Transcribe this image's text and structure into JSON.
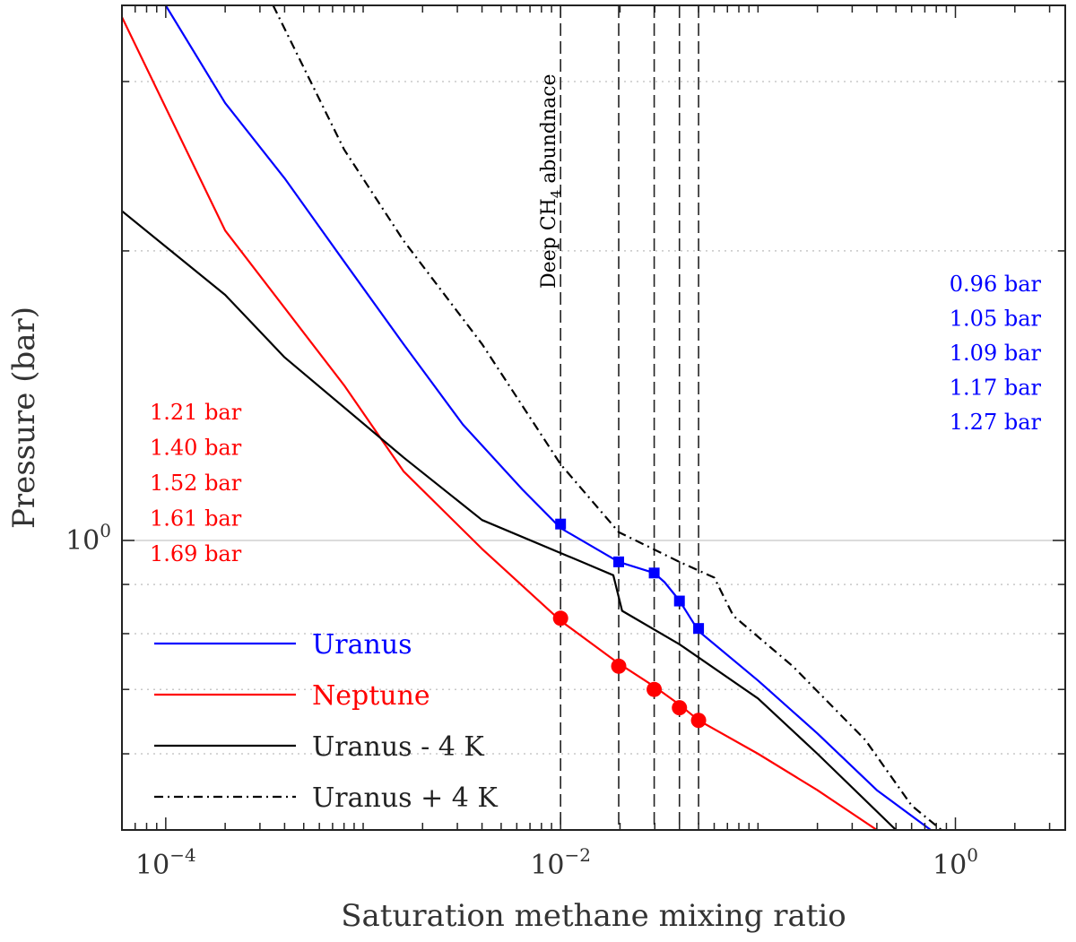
{
  "chart_data": {
    "type": "line",
    "xlabel": "Saturation methane mixing ratio",
    "ylabel": "Pressure (bar)",
    "xscale": "log",
    "yscale": "log",
    "xlim": [
      6e-05,
      3.6
    ],
    "ylim": [
      0.5,
      3.6
    ],
    "x_ticks": [
      {
        "value": 0.0001,
        "base": "10",
        "exp": "−4"
      },
      {
        "value": 0.01,
        "base": "10",
        "exp": "−2"
      },
      {
        "value": 1,
        "base": "10",
        "exp": "0"
      }
    ],
    "y_ticks": [
      {
        "value": 1,
        "base": "10",
        "exp": "0"
      }
    ],
    "vline_label": {
      "prefix": "Deep CH",
      "sub": "4",
      "suffix": " abundnace"
    },
    "deep_ch4_abundances": [
      0.01,
      0.0197,
      0.0298,
      0.04,
      0.05
    ],
    "series": [
      {
        "name": "Uranus",
        "color": "#0000ff",
        "style": "solid",
        "points": [
          [
            0.0001,
            3.6
          ],
          [
            0.0002,
            2.85
          ],
          [
            0.0004,
            2.38
          ],
          [
            0.0008,
            1.95
          ],
          [
            0.0016,
            1.6
          ],
          [
            0.0032,
            1.32
          ],
          [
            0.0064,
            1.13
          ],
          [
            0.01,
            1.03
          ],
          [
            0.0197,
            0.95
          ],
          [
            0.0298,
            0.925
          ],
          [
            0.0336,
            0.905
          ],
          [
            0.04,
            0.866
          ],
          [
            0.05,
            0.805
          ],
          [
            0.1,
            0.715
          ],
          [
            0.2,
            0.63
          ],
          [
            0.4,
            0.55
          ],
          [
            0.75,
            0.5
          ]
        ]
      },
      {
        "name": "Neptune",
        "color": "#ff0000",
        "style": "solid",
        "points": [
          [
            6e-05,
            3.5
          ],
          [
            0.0002,
            2.1
          ],
          [
            0.0008,
            1.45
          ],
          [
            0.0016,
            1.18
          ],
          [
            0.004,
            0.98
          ],
          [
            0.01,
            0.825
          ],
          [
            0.0197,
            0.745
          ],
          [
            0.0298,
            0.705
          ],
          [
            0.04,
            0.675
          ],
          [
            0.05,
            0.65
          ],
          [
            0.1,
            0.6
          ],
          [
            0.2,
            0.55
          ],
          [
            0.4,
            0.5
          ]
        ]
      },
      {
        "name": "Uranus - 4 K",
        "color": "#000000",
        "style": "solid",
        "points": [
          [
            6e-05,
            2.2
          ],
          [
            0.0002,
            1.8
          ],
          [
            0.0004,
            1.55
          ],
          [
            0.0016,
            1.22
          ],
          [
            0.004,
            1.05
          ],
          [
            0.0128,
            0.95
          ],
          [
            0.0185,
            0.92
          ],
          [
            0.0205,
            0.845
          ],
          [
            0.04,
            0.78
          ],
          [
            0.1,
            0.685
          ],
          [
            0.2,
            0.6
          ],
          [
            0.5,
            0.5
          ]
        ]
      },
      {
        "name": "Uranus + 4 K",
        "color": "#000000",
        "style": "dashdot",
        "points": [
          [
            0.00035,
            3.6
          ],
          [
            0.0008,
            2.55
          ],
          [
            0.0016,
            2.05
          ],
          [
            0.004,
            1.6
          ],
          [
            0.01,
            1.2
          ],
          [
            0.0197,
            1.02
          ],
          [
            0.04,
            0.95
          ],
          [
            0.06,
            0.915
          ],
          [
            0.075,
            0.835
          ],
          [
            0.15,
            0.74
          ],
          [
            0.35,
            0.62
          ],
          [
            0.6,
            0.53
          ],
          [
            0.85,
            0.5
          ]
        ]
      }
    ],
    "markers": {
      "Uranus": {
        "color": "#0000ff",
        "shape": "square",
        "points": [
          [
            0.01,
            1.04
          ],
          [
            0.0197,
            0.95
          ],
          [
            0.0298,
            0.925
          ],
          [
            0.04,
            0.865
          ],
          [
            0.05,
            0.81
          ]
        ]
      },
      "Neptune": {
        "color": "#ff0000",
        "shape": "circle",
        "points": [
          [
            0.01,
            0.83
          ],
          [
            0.0197,
            0.74
          ],
          [
            0.0298,
            0.7
          ],
          [
            0.04,
            0.67
          ],
          [
            0.05,
            0.65
          ]
        ]
      }
    },
    "annotations_uranus": [
      "0.96 bar",
      "1.05 bar",
      "1.09 bar",
      "1.17 bar",
      "1.27 bar"
    ],
    "annotations_neptune": [
      "1.21 bar",
      "1.40 bar",
      "1.52 bar",
      "1.61 bar",
      "1.69 bar"
    ],
    "legend": {
      "position": "bottom-left",
      "entries": [
        "Uranus",
        "Neptune",
        "Uranus - 4 K",
        "Uranus + 4 K"
      ]
    },
    "colors": {
      "uranus": "#0000ff",
      "neptune": "#ff0000",
      "black": "#000000"
    }
  }
}
